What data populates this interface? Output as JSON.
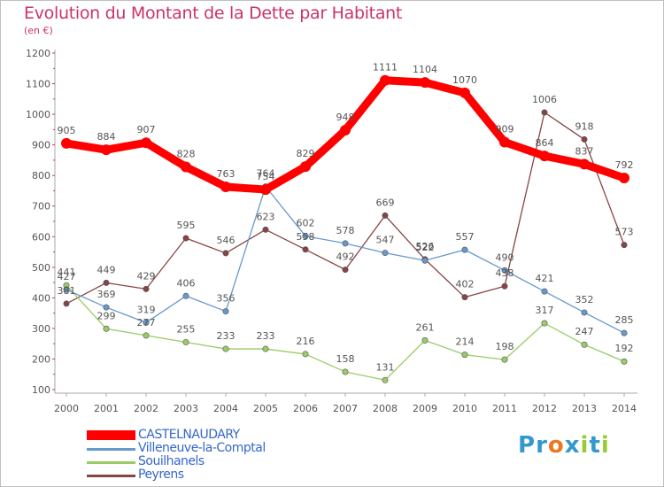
{
  "header": {
    "title": "Evolution du Montant de la Dette par Habitant",
    "unit": "(en €)"
  },
  "logo": {
    "text": "Proxiti",
    "letters": [
      "P",
      "r",
      "o",
      "x",
      "i",
      "t",
      "i"
    ],
    "colors": [
      "#3399cc",
      "#3399cc",
      "#ee7722",
      "#3399cc",
      "#99cc33",
      "#3399cc",
      "#99cc33"
    ]
  },
  "chart_data": {
    "type": "line",
    "title": "Evolution du Montant de la Dette par Habitant",
    "ylabel": "(en €)",
    "x": [
      "2000",
      "2001",
      "2002",
      "2003",
      "2004",
      "2005",
      "2006",
      "2007",
      "2008",
      "2009",
      "2010",
      "2011",
      "2012",
      "2013",
      "2014"
    ],
    "ylim": [
      100,
      1200
    ],
    "yticks": [
      100,
      200,
      300,
      400,
      500,
      600,
      700,
      800,
      900,
      1000,
      1100,
      1200
    ],
    "grid": false,
    "legend_position": "bottom-left",
    "series": [
      {
        "name": "CASTELNAUDARY",
        "color": "#ff0000",
        "values": [
          905,
          884,
          907,
          828,
          763,
          754,
          829,
          948,
          1111,
          1104,
          1070,
          909,
          864,
          837,
          792
        ]
      },
      {
        "name": "Villeneuve-la-Comptal",
        "color": "#6699cc",
        "values": [
          427,
          369,
          319,
          406,
          356,
          764,
          602,
          578,
          547,
          522,
          557,
          490,
          421,
          352,
          285
        ]
      },
      {
        "name": "Souilhanels",
        "color": "#99cc66",
        "values": [
          441,
          299,
          277,
          255,
          233,
          233,
          216,
          158,
          131,
          261,
          214,
          198,
          317,
          247,
          192
        ]
      },
      {
        "name": "Peyrens",
        "color": "#884444",
        "values": [
          381,
          449,
          429,
          595,
          546,
          623,
          558,
          492,
          669,
          526,
          402,
          438,
          1006,
          918,
          573
        ]
      }
    ]
  }
}
